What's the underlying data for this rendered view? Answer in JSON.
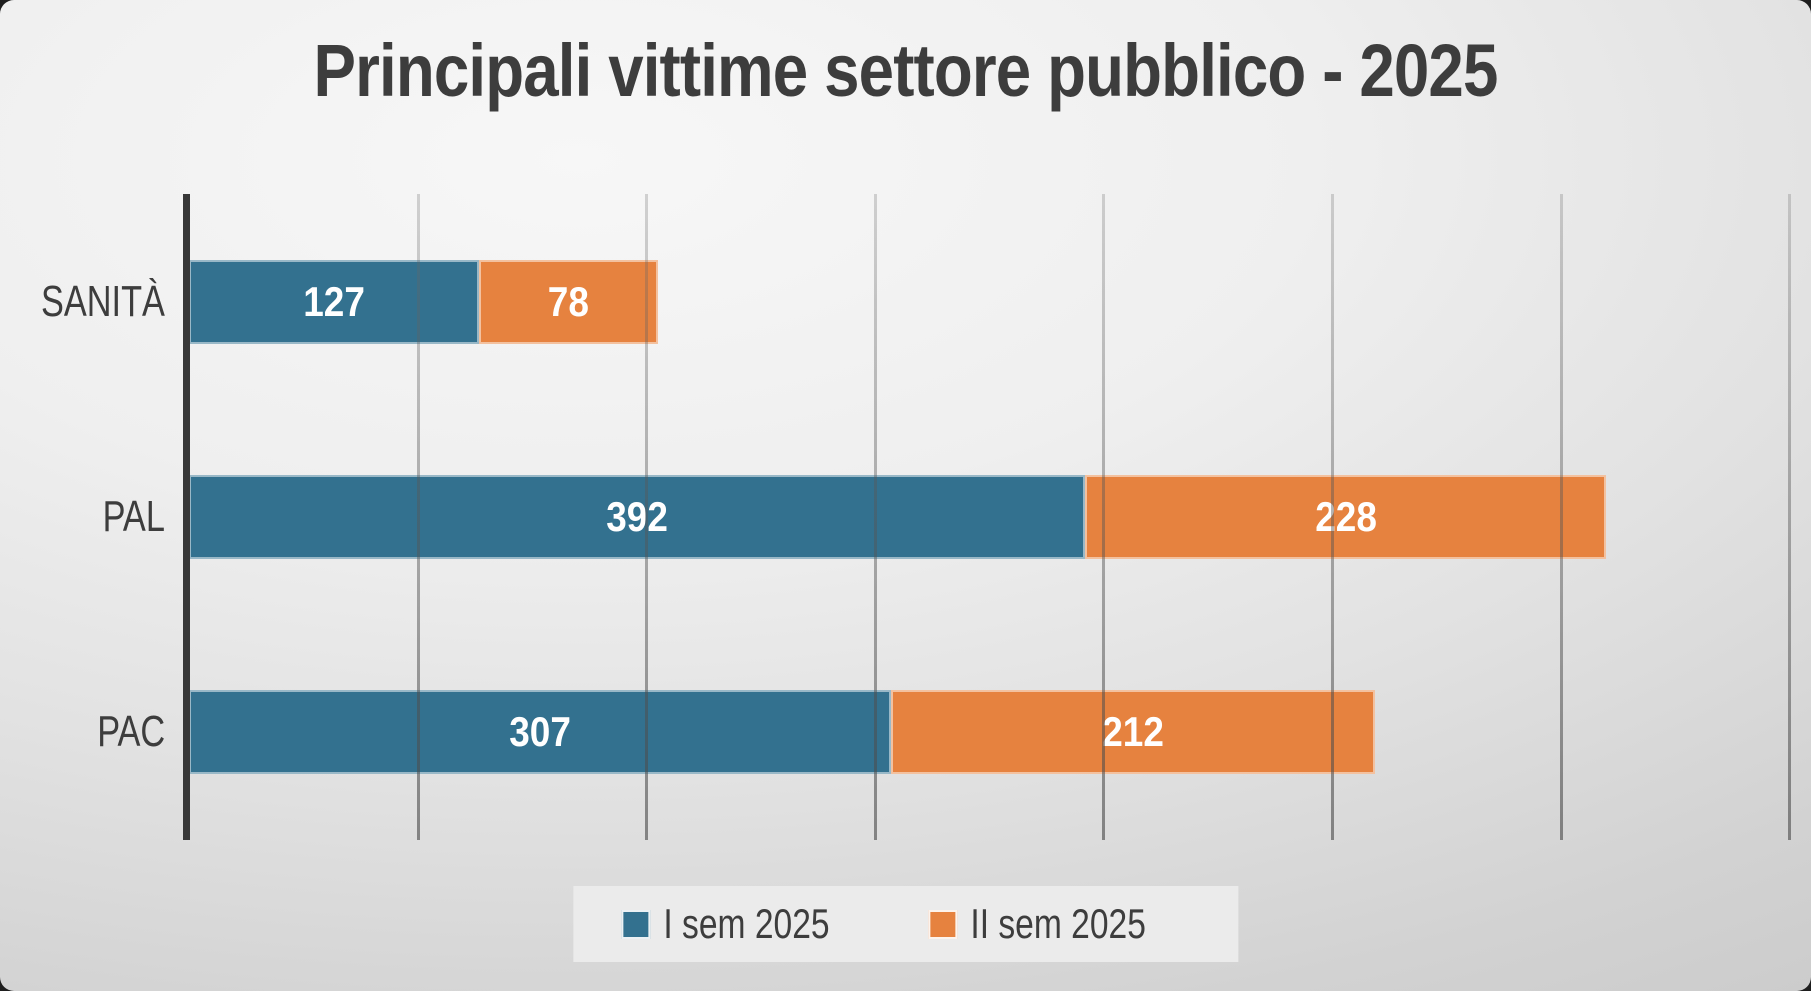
{
  "slide": {
    "title": "Principali vittime settore pubblico - 2025"
  },
  "colors": {
    "background_light": "#F7F7F7",
    "background_dark": "#C5C5C5",
    "series1": "#33718F",
    "series2": "#E6823F",
    "text": "#3D3D3D",
    "bar_value_text": "#FFFFFF",
    "axis_line": "#383838",
    "legend_background": "#EBEBEB"
  },
  "legend": {
    "items": [
      {
        "label": "I sem 2025"
      },
      {
        "label": "II sem 2025"
      }
    ]
  },
  "chart_data": {
    "type": "bar",
    "orientation": "horizontal",
    "stacked": true,
    "title": "Principali vittime settore pubblico - 2025",
    "categories": [
      "SANITÀ",
      "PAL",
      "PAC"
    ],
    "series": [
      {
        "name": "I sem 2025",
        "color": "#33718F",
        "values": [
          127,
          392,
          307
        ]
      },
      {
        "name": "II sem 2025",
        "color": "#E6823F",
        "values": [
          78,
          228,
          212
        ]
      }
    ],
    "totals": [
      205,
      620,
      519
    ],
    "xlabel": "",
    "ylabel": "",
    "xlim": [
      0,
      703
    ],
    "gridline_interval": 100,
    "grid": true,
    "legend_position": "bottom",
    "data_labels": true
  }
}
